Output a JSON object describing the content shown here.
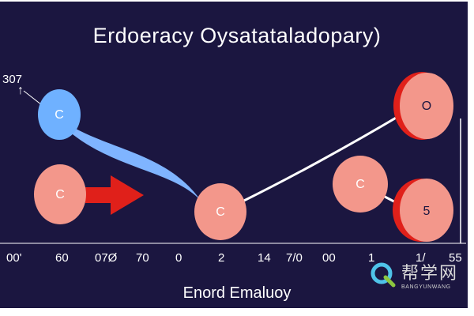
{
  "title": "Erdoeracy  Oysatataladopary)",
  "top_left_label": "307",
  "arrow_glyph": "↑",
  "axis_label": "Enord Emaluoy",
  "ticks": [
    "00'",
    "60",
    "07Ø",
    "70",
    "0",
    "2",
    "14",
    "7/0",
    "00",
    "1",
    "1/",
    "55"
  ],
  "nodes": {
    "blue": "C",
    "left_pink": "C",
    "center": "C",
    "top_right": "O",
    "mid_right": "C",
    "bottom_right": "5"
  },
  "watermark": {
    "cn": "帮学网",
    "en": "BANGYUNWANG"
  },
  "colors": {
    "background": "#1b1640",
    "blue_node": "#6fb1ff",
    "pink_node": "#f3978b",
    "red_accent": "#e0201a",
    "curve_blue": "#7fb4ff",
    "line_white": "#ffffff"
  }
}
